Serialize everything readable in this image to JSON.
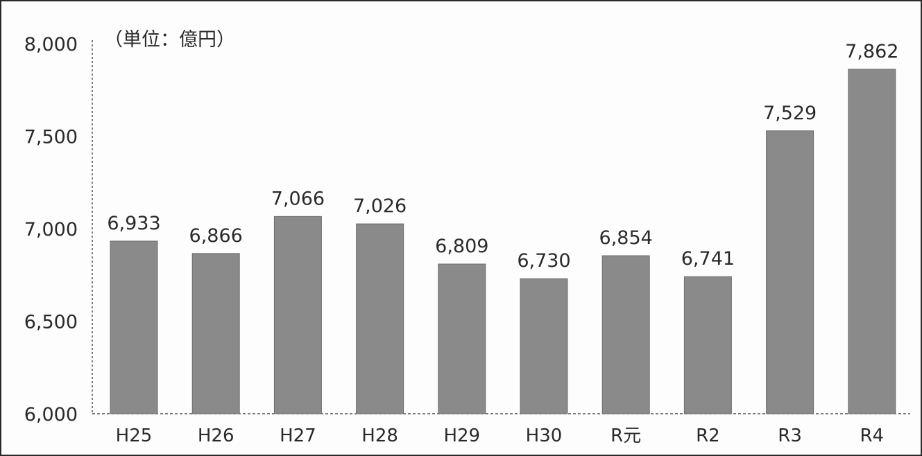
{
  "chart_data": {
    "type": "bar",
    "unit_label": "（単位：億円）",
    "categories": [
      "H25",
      "H26",
      "H27",
      "H28",
      "H29",
      "H30",
      "R元",
      "R2",
      "R3",
      "R4"
    ],
    "values": [
      6933,
      6866,
      7066,
      7026,
      6809,
      6730,
      6854,
      6741,
      7529,
      7862
    ],
    "data_labels": [
      "6,933",
      "6,866",
      "7,066",
      "7,026",
      "6,809",
      "6,730",
      "6,854",
      "6,741",
      "7,529",
      "7,862"
    ],
    "y_ticks": [
      {
        "value": 6000,
        "label": "6,000"
      },
      {
        "value": 6500,
        "label": "6,500"
      },
      {
        "value": 7000,
        "label": "7,000"
      },
      {
        "value": 7500,
        "label": "7,500"
      },
      {
        "value": 8000,
        "label": "8,000"
      }
    ],
    "ylim": [
      6000,
      8000
    ],
    "grid": false,
    "bar_color": "#8a8a8a"
  }
}
